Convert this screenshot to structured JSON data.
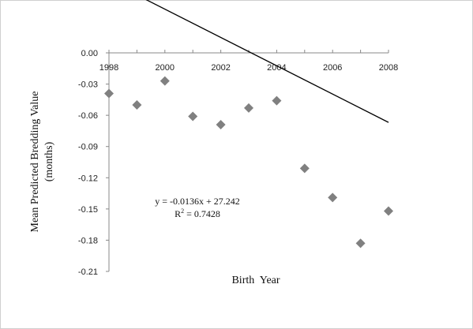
{
  "chart_data": {
    "type": "scatter",
    "title": "",
    "xlabel": "Birth  Year",
    "ylabel": "Mean Predicted Bredding Value",
    "ylabel2": "(months)",
    "xlim": [
      1998,
      2008
    ],
    "ylim": [
      -0.21,
      0.0
    ],
    "x_ticks": [
      "1998",
      "2000",
      "2002",
      "2004",
      "2006",
      "2008"
    ],
    "y_ticks": [
      "0.00",
      "-0.03",
      "-0.06",
      "-0.09",
      "-0.12",
      "-0.15",
      "-0.18",
      "-0.21"
    ],
    "grid": false,
    "marker": "diamond",
    "marker_color": "#808080",
    "series": [
      {
        "x": [
          1998,
          1999,
          2000,
          2001,
          2002,
          2003,
          2004,
          2005,
          2006,
          2007,
          2008
        ],
        "y": [
          -0.039,
          -0.05,
          -0.027,
          -0.061,
          -0.069,
          -0.053,
          -0.046,
          -0.111,
          -0.139,
          -0.183,
          -0.152
        ]
      }
    ],
    "trendline": {
      "slope": -0.0136,
      "intercept": 27.242,
      "x_range": [
        1998,
        2008
      ],
      "color": "#000000",
      "equation": "y = -0.0136x + 27.242",
      "r2_label": "R",
      "r2_sup": "2",
      "r2_value": " = 0.7428"
    }
  }
}
